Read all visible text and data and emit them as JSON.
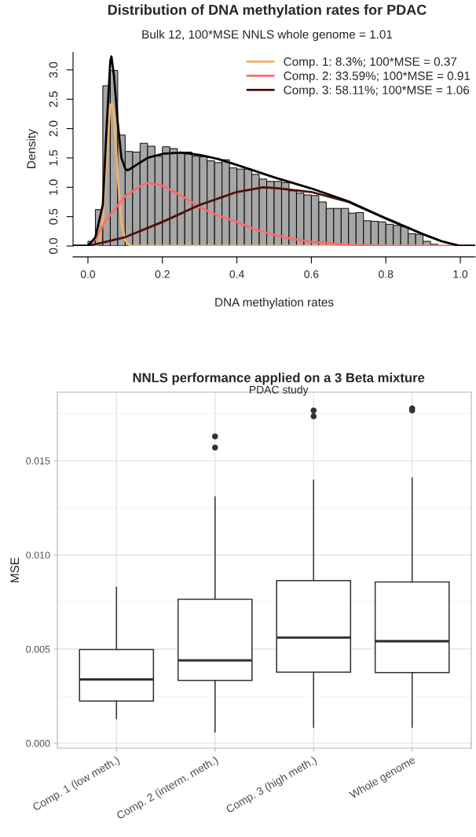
{
  "chart_data": [
    {
      "type": "histogram",
      "title": "Distribution of DNA methylation rates for PDAC",
      "subtitle": "Bulk 12, 100*MSE NNLS whole genome = 1.01",
      "xlabel": "DNA methylation rates",
      "ylabel": "Density",
      "bins": [
        0,
        0.02,
        0.04,
        0.06,
        0.08,
        0.1,
        0.12,
        0.14,
        0.16,
        0.18,
        0.2,
        0.22,
        0.24,
        0.26,
        0.28,
        0.3,
        0.32,
        0.34,
        0.36,
        0.38,
        0.4,
        0.42,
        0.44,
        0.46,
        0.48,
        0.5,
        0.52,
        0.54,
        0.56,
        0.58,
        0.6,
        0.62,
        0.64,
        0.66,
        0.68,
        0.7,
        0.72,
        0.74,
        0.76,
        0.78,
        0.8,
        0.82,
        0.84,
        0.86,
        0.88,
        0.9,
        0.92,
        0.94
      ],
      "values": [
        0.08,
        0.62,
        2.73,
        2.99,
        1.89,
        1.61,
        1.6,
        1.75,
        1.7,
        1.53,
        1.69,
        1.66,
        1.58,
        1.6,
        1.53,
        1.52,
        1.45,
        1.42,
        1.47,
        1.33,
        1.31,
        1.31,
        1.22,
        1.14,
        1.1,
        1.1,
        1.08,
        0.94,
        0.9,
        0.87,
        0.86,
        0.75,
        0.64,
        0.64,
        0.64,
        0.56,
        0.57,
        0.43,
        0.42,
        0.41,
        0.37,
        0.35,
        0.33,
        0.21,
        0.2,
        0.08,
        0.03
      ],
      "color": "#a6a6a6",
      "series": [
        {
          "type": "line",
          "name": "Comp. 1: 8.3%; 100*MSE = 0.37",
          "color": "#f5b266",
          "x": [
            -0.04,
            0.02,
            0.03,
            0.04,
            0.05,
            0.06,
            0.065,
            0.07,
            0.08,
            0.09,
            0.1,
            0.11,
            0.12,
            1.04
          ],
          "values": [
            0,
            0,
            0.05,
            0.45,
            1.5,
            2.4,
            2.43,
            2.2,
            1.2,
            0.4,
            0.1,
            0.02,
            0,
            0
          ]
        },
        {
          "type": "line",
          "name": "Comp. 2: 33.59%; 100*MSE = 0.91",
          "color": "#ff6b6b",
          "x": [
            -0.04,
            0,
            0.02,
            0.05,
            0.1,
            0.15,
            0.16,
            0.2,
            0.25,
            0.3,
            0.35,
            0.4,
            0.45,
            0.5,
            0.55,
            0.6,
            0.7,
            0.8,
            1.04
          ],
          "values": [
            0,
            0,
            0.12,
            0.45,
            0.85,
            1.06,
            1.07,
            1.03,
            0.86,
            0.66,
            0.52,
            0.41,
            0.28,
            0.19,
            0.12,
            0.07,
            0.02,
            0,
            0
          ]
        },
        {
          "type": "line",
          "name": "Comp. 3: 58.11%; 100*MSE = 1.06",
          "color": "#4d0f0f",
          "x": [
            -0.04,
            0,
            0.1,
            0.2,
            0.3,
            0.4,
            0.47,
            0.5,
            0.6,
            0.7,
            0.8,
            0.9,
            0.95,
            1.0,
            1.04
          ],
          "values": [
            0,
            0,
            0.15,
            0.41,
            0.7,
            0.92,
            1.0,
            0.99,
            0.92,
            0.75,
            0.47,
            0.2,
            0.08,
            0,
            0
          ]
        },
        {
          "type": "line",
          "color": "#000000",
          "x": [
            -0.04,
            0,
            0.02,
            0.04,
            0.05,
            0.06,
            0.063,
            0.07,
            0.08,
            0.09,
            0.1,
            0.105,
            0.11,
            0.13,
            0.16,
            0.2,
            0.25,
            0.3,
            0.35,
            0.4,
            0.5,
            0.6,
            0.7,
            0.8,
            0.9,
            0.95,
            1.0,
            1.04
          ],
          "values": [
            0,
            0,
            0.15,
            0.7,
            2.0,
            3.15,
            3.23,
            2.9,
            2.1,
            1.5,
            1.32,
            1.29,
            1.3,
            1.38,
            1.5,
            1.57,
            1.59,
            1.55,
            1.48,
            1.38,
            1.17,
            0.98,
            0.76,
            0.47,
            0.2,
            0.08,
            0,
            0
          ]
        }
      ],
      "xlim": [
        -0.04,
        1.04
      ],
      "xticks": [
        {
          "value": 0,
          "label": "0.0"
        },
        0.2,
        0.4,
        0.6,
        0.8,
        {
          "value": 1,
          "label": "1.0"
        }
      ],
      "ylim": [
        0,
        3.3
      ],
      "yticks": [
        {
          "value": 0,
          "label": "0.0"
        },
        0.5,
        {
          "value": 1,
          "label": "1.0"
        },
        1.5,
        {
          "value": 2,
          "label": "2.0"
        },
        2.5,
        {
          "value": 3,
          "label": "3.0"
        }
      ],
      "legend": "top right",
      "grid": false
    },
    {
      "type": "box",
      "title": "NNLS performance applied on a 3 Beta mixture",
      "subtitle": "PDAC study",
      "ylabel": "MSE",
      "categories": [
        "Comp. 1 (low meth.)",
        "Comp. 2 (interm. meth.)",
        "Comp. 3 (high meth.)",
        "Whole genome"
      ],
      "boxes": [
        {
          "low": 0.00129,
          "q1": 0.00224,
          "median": 0.00339,
          "q3": 0.00498,
          "high": 0.00828
        },
        {
          "low": 0.0006,
          "q1": 0.00334,
          "median": 0.0044,
          "q3": 0.00765,
          "high": 0.01309,
          "outliers": [
            0.01629,
            0.0157
          ]
        },
        {
          "low": 0.00085,
          "q1": 0.00378,
          "median": 0.00561,
          "q3": 0.00864,
          "high": 0.01398,
          "outliers": [
            0.01767,
            0.01736
          ]
        },
        {
          "low": 0.00085,
          "q1": 0.00376,
          "median": 0.00542,
          "q3": 0.00856,
          "high": 0.01409,
          "outliers": [
            0.01778,
            0.01767
          ]
        }
      ],
      "ylim": [
        -0.00026,
        0.01864
      ],
      "yticks": [
        {
          "value": 0,
          "label": "0.000"
        },
        {
          "value": 0.005,
          "label": "0.005"
        },
        {
          "value": 0.01,
          "label": "0.010"
        },
        {
          "value": 0.015,
          "label": "0.015"
        }
      ],
      "grid": true
    }
  ]
}
